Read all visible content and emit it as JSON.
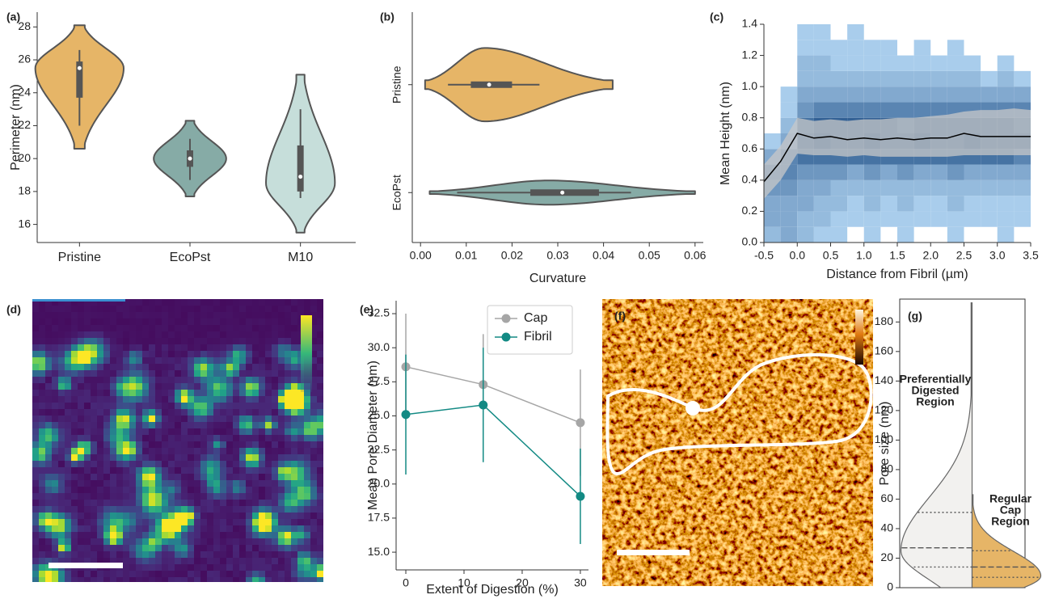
{
  "chart_data": [
    {
      "type": "violin",
      "label": "(a)",
      "ylabel": "Perimeter (nm)",
      "categories": [
        "Pristine",
        "EcoPst",
        "M10"
      ],
      "colors": [
        "#e6b567",
        "#86aba6",
        "#c6deda"
      ],
      "ylim": [
        14.9,
        28.9
      ],
      "yticks": [
        16,
        18,
        20,
        22,
        24,
        26,
        28
      ],
      "violins": [
        {
          "min": 20.6,
          "max": 28.1,
          "mode": 25.5,
          "q1": 23.7,
          "median": 25.5,
          "q3": 25.9,
          "whisker_low": 22.0,
          "whisker_high": 26.6
        },
        {
          "min": 17.7,
          "max": 22.3,
          "mode": 20.0,
          "q1": 19.5,
          "median": 20.0,
          "q3": 20.5,
          "whisker_low": 18.7,
          "whisker_high": 21.2
        },
        {
          "min": 15.5,
          "max": 25.1,
          "mode": 18.5,
          "q1": 18.0,
          "median": 18.9,
          "q3": 20.8,
          "whisker_low": 17.6,
          "whisker_high": 23.0
        }
      ]
    },
    {
      "type": "violin",
      "orient": "horizontal",
      "label": "(b)",
      "xlabel": "Curvature",
      "categories": [
        "Pristine",
        "EcoPst"
      ],
      "colors": [
        "#e6b567",
        "#86aba6"
      ],
      "xlim": [
        -0.0018,
        0.0618
      ],
      "xticks": [
        {
          "value": 0,
          "label": "0.00"
        },
        0.01,
        0.02,
        0.03,
        0.04,
        0.05,
        0.06
      ],
      "violins": [
        {
          "min": 0.001,
          "max": 0.042,
          "mode": 0.014,
          "q1": 0.011,
          "median": 0.015,
          "q3": 0.02,
          "whisker_low": 0.006,
          "whisker_high": 0.026
        },
        {
          "min": 0.002,
          "max": 0.06,
          "mode": 0.028,
          "q1": 0.024,
          "median": 0.031,
          "q3": 0.039,
          "whisker_low": 0.008,
          "whisker_high": 0.046
        }
      ]
    },
    {
      "type": "heatmap2d",
      "label": "(c)",
      "xlabel": "Distance from Fibril (µm)",
      "ylabel": "Mean Height (nm)",
      "xlim": [
        -0.5,
        3.5
      ],
      "ylim": [
        0,
        1.4
      ],
      "xticks": [
        -0.5,
        {
          "value": 0,
          "label": "0.0"
        },
        0.5,
        {
          "value": 1,
          "label": "1.0"
        },
        1.5,
        {
          "value": 2,
          "label": "2.0"
        },
        2.5,
        {
          "value": 3,
          "label": "3.0"
        },
        3.5
      ],
      "yticks": [
        {
          "value": 0,
          "label": "0.0"
        },
        0.2,
        0.4,
        0.6,
        0.8,
        {
          "value": 1,
          "label": "1.0"
        },
        1.2,
        1.4
      ],
      "color_low": "#a9cdec",
      "color_high": "#1f4f86",
      "x_bins": [
        -0.5,
        -0.25,
        0,
        0.25,
        0.5,
        0.75,
        1,
        1.25,
        1.5,
        1.75,
        2,
        2.25,
        2.5,
        2.75,
        3,
        3.25,
        3.5
      ],
      "y_bins": [
        0,
        0.1,
        0.2,
        0.3,
        0.4,
        0.5,
        0.6,
        0.7,
        0.8,
        0.9,
        1.0,
        1.1,
        1.2,
        1.3,
        1.4
      ],
      "counts": [
        [
          2,
          3,
          2,
          1,
          1,
          0,
          1,
          0,
          1,
          0,
          0,
          1,
          0,
          0,
          1,
          0
        ],
        [
          3,
          3,
          2,
          2,
          1,
          1,
          1,
          1,
          1,
          1,
          1,
          1,
          1,
          1,
          1,
          1
        ],
        [
          3,
          3,
          3,
          2,
          2,
          1,
          2,
          1,
          2,
          1,
          1,
          2,
          1,
          1,
          1,
          1
        ],
        [
          4,
          4,
          3,
          3,
          2,
          2,
          2,
          2,
          2,
          2,
          2,
          2,
          2,
          2,
          2,
          2
        ],
        [
          5,
          5,
          4,
          4,
          4,
          3,
          4,
          3,
          4,
          3,
          3,
          4,
          3,
          3,
          3,
          3
        ],
        [
          3,
          5,
          6,
          6,
          6,
          6,
          6,
          6,
          6,
          6,
          6,
          6,
          6,
          6,
          6,
          5
        ],
        [
          1,
          3,
          7,
          8,
          7,
          7,
          8,
          7,
          7,
          8,
          7,
          7,
          8,
          7,
          7,
          7
        ],
        [
          0,
          2,
          6,
          7,
          7,
          7,
          7,
          7,
          6,
          7,
          7,
          7,
          7,
          7,
          7,
          6
        ],
        [
          0,
          1,
          4,
          5,
          5,
          5,
          5,
          5,
          5,
          5,
          5,
          5,
          5,
          5,
          5,
          5
        ],
        [
          0,
          1,
          3,
          3,
          3,
          3,
          3,
          3,
          3,
          3,
          3,
          3,
          3,
          3,
          3,
          3
        ],
        [
          0,
          0,
          2,
          2,
          2,
          2,
          2,
          2,
          2,
          2,
          2,
          2,
          2,
          1,
          2,
          1
        ],
        [
          0,
          0,
          2,
          2,
          1,
          1,
          1,
          1,
          1,
          1,
          1,
          1,
          1,
          0,
          1,
          0
        ],
        [
          0,
          0,
          1,
          1,
          1,
          1,
          1,
          1,
          0,
          1,
          0,
          1,
          0,
          0,
          0,
          0
        ],
        [
          0,
          0,
          1,
          1,
          0,
          1,
          0,
          0,
          0,
          0,
          0,
          0,
          0,
          0,
          0,
          0
        ]
      ],
      "line": {
        "color": "#000000",
        "x": [
          -0.5,
          -0.25,
          0,
          0.25,
          0.5,
          0.75,
          1,
          1.25,
          1.5,
          1.75,
          2,
          2.25,
          2.5,
          2.75,
          3,
          3.25,
          3.5
        ],
        "values": [
          0.39,
          0.52,
          0.7,
          0.67,
          0.68,
          0.66,
          0.67,
          0.66,
          0.67,
          0.66,
          0.67,
          0.67,
          0.7,
          0.68,
          0.68,
          0.68,
          0.68
        ]
      },
      "band": {
        "color": "#c8c8c8",
        "upper": [
          0.5,
          0.62,
          0.8,
          0.78,
          0.79,
          0.78,
          0.79,
          0.79,
          0.8,
          0.8,
          0.81,
          0.82,
          0.84,
          0.85,
          0.85,
          0.86,
          0.85
        ],
        "lower": [
          0.28,
          0.4,
          0.57,
          0.56,
          0.56,
          0.55,
          0.56,
          0.55,
          0.55,
          0.55,
          0.55,
          0.55,
          0.56,
          0.56,
          0.56,
          0.56,
          0.56
        ]
      }
    },
    {
      "type": "image",
      "label": "(d)",
      "colormap": "viridis"
    },
    {
      "type": "line",
      "label": "(e)",
      "xlabel": "Extent of Digestion (%)",
      "ylabel": "Mean Pore Diameter (nm)",
      "x": [
        0,
        13.3,
        30
      ],
      "xlim": [
        -1.67,
        31.4
      ],
      "xticks": [
        0,
        10,
        20,
        30
      ],
      "ylim": [
        13.7,
        33.45
      ],
      "yticks": [
        {
          "value": 15,
          "label": "15.0"
        },
        17.5,
        {
          "value": 20,
          "label": "20.0"
        },
        22.5,
        {
          "value": 25,
          "label": "25.0"
        },
        27.5,
        {
          "value": 30,
          "label": "30.0"
        },
        32.5
      ],
      "legend": "upper right",
      "series": [
        {
          "name": "Cap",
          "color": "#a6a6a6",
          "values": [
            28.6,
            27.3,
            24.5
          ],
          "errors": [
            3.9,
            3.7,
            3.9
          ]
        },
        {
          "name": "Fibril",
          "color": "#138a84",
          "values": [
            25.1,
            25.8,
            19.1
          ],
          "errors": [
            4.4,
            4.2,
            3.5
          ]
        }
      ]
    },
    {
      "type": "image",
      "label": "(f)",
      "label_color": "#ffffff",
      "colormap": "afmhot"
    },
    {
      "type": "split_violin",
      "label": "(g)",
      "ylabel": "Pore size (nm)",
      "ylim": [
        0,
        195.5
      ],
      "yticks": [
        0,
        20,
        40,
        60,
        80,
        100,
        120,
        140,
        160,
        180
      ],
      "halves": [
        {
          "color": "#f2f1ef",
          "min": 0,
          "max": 193,
          "mode": 25,
          "q1": 14,
          "median": 27,
          "q3": 51,
          "annotation": [
            "Preferentially",
            "Digested",
            "Region"
          ]
        },
        {
          "color": "#e6b567",
          "min": 0,
          "max": 63,
          "mode": 8,
          "q1": 7,
          "median": 14,
          "q3": 25,
          "annotation": [
            "Regular",
            "Cap",
            "Region"
          ]
        }
      ]
    }
  ]
}
